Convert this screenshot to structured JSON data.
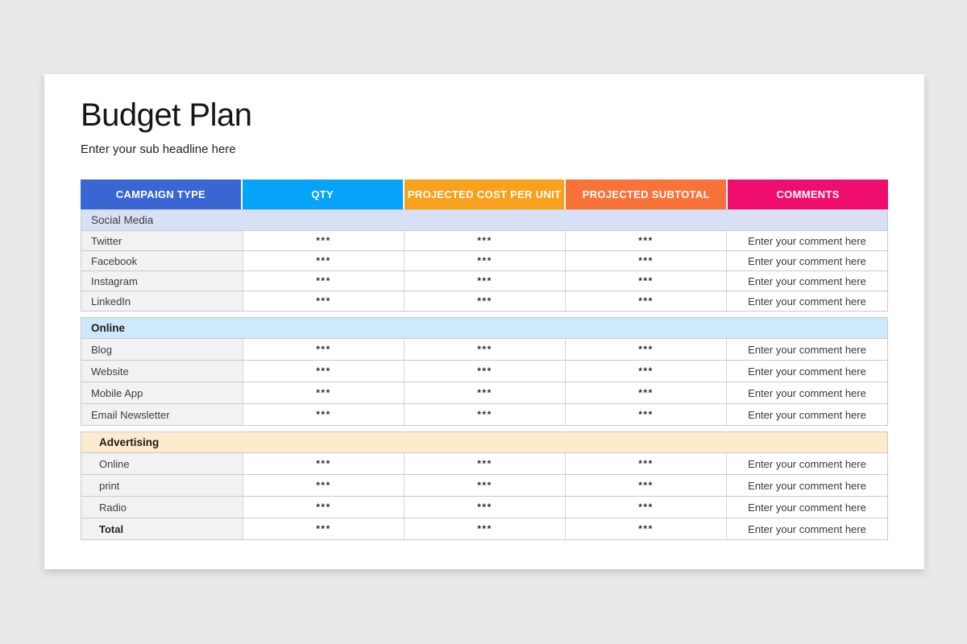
{
  "page": {
    "background_color": "#e9e9e9",
    "card_color": "#ffffff"
  },
  "header": {
    "title": "Budget Plan",
    "subtitle": "Enter your sub headline here"
  },
  "table": {
    "columns": [
      {
        "label": "CAMPAIGN TYPE",
        "color": "#3966d2"
      },
      {
        "label": "QTY",
        "color": "#05a4f8"
      },
      {
        "label": "PROJECTED COST PER UNIT",
        "color": "#f7a11c"
      },
      {
        "label": "PROJECTED SUBTOTAL",
        "color": "#f87239"
      },
      {
        "label": "COMMENTS",
        "color": "#ef0e6e"
      }
    ],
    "value_placeholder": "***",
    "comment_placeholder": "Enter your comment here",
    "sections": [
      {
        "name": "Social Media",
        "band_color": "#d8e0f5",
        "bold": false,
        "indent": false,
        "rows": [
          {
            "label": "Twitter",
            "qty": "***",
            "cost": "***",
            "subtotal": "***",
            "comment": "Enter your comment here"
          },
          {
            "label": "Facebook",
            "qty": "***",
            "cost": "***",
            "subtotal": "***",
            "comment": "Enter your comment here"
          },
          {
            "label": "Instagram",
            "qty": "***",
            "cost": "***",
            "subtotal": "***",
            "comment": "Enter your comment here"
          },
          {
            "label": "LinkedIn",
            "qty": "***",
            "cost": "***",
            "subtotal": "***",
            "comment": "Enter your comment here"
          }
        ]
      },
      {
        "name": "Online",
        "band_color": "#cceafb",
        "bold": true,
        "indent": false,
        "rows": [
          {
            "label": "Blog",
            "qty": "***",
            "cost": "***",
            "subtotal": "***",
            "comment": "Enter your comment here"
          },
          {
            "label": "Website",
            "qty": "***",
            "cost": "***",
            "subtotal": "***",
            "comment": "Enter your comment here"
          },
          {
            "label": "Mobile App",
            "qty": "***",
            "cost": "***",
            "subtotal": "***",
            "comment": "Enter your comment here"
          },
          {
            "label": "Email Newsletter",
            "qty": "***",
            "cost": "***",
            "subtotal": "***",
            "comment": "Enter your comment here"
          }
        ]
      },
      {
        "name": "Advertising",
        "band_color": "#fdebcd",
        "bold": true,
        "indent": true,
        "rows": [
          {
            "label": "Online",
            "qty": "***",
            "cost": "***",
            "subtotal": "***",
            "comment": "Enter your comment here"
          },
          {
            "label": "print",
            "qty": "***",
            "cost": "***",
            "subtotal": "***",
            "comment": "Enter your comment here"
          },
          {
            "label": "Radio",
            "qty": "***",
            "cost": "***",
            "subtotal": "***",
            "comment": "Enter your comment here"
          },
          {
            "label": "Total",
            "bold": true,
            "qty": "***",
            "cost": "***",
            "subtotal": "***",
            "comment": "Enter your comment here"
          }
        ]
      }
    ]
  }
}
